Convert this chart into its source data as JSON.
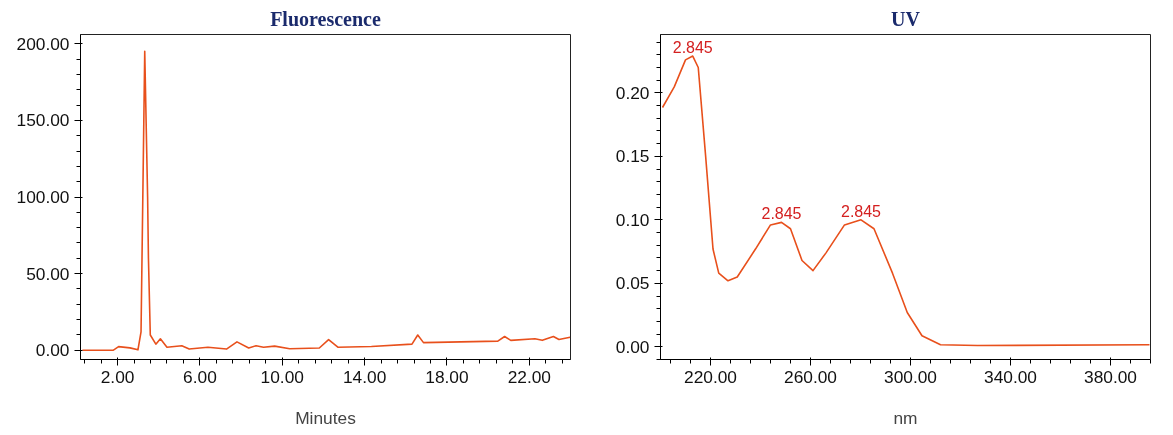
{
  "chart_data": [
    {
      "type": "line",
      "title": "Fluorescence",
      "xlabel": "Minutes",
      "x": [
        0.29,
        1.78,
        2.05,
        2.6,
        2.99,
        3.14,
        3.32,
        3.46,
        3.5,
        3.59,
        3.86,
        4.08,
        4.4,
        5.12,
        5.48,
        6.39,
        7.29,
        7.8,
        8.37,
        8.73,
        9.09,
        9.63,
        10.36,
        11.8,
        12.25,
        12.7,
        14.33,
        16.3,
        16.58,
        16.86,
        20.47,
        20.8,
        21.1,
        22.27,
        22.63,
        23.17,
        23.44,
        23.98
      ],
      "series": [
        {
          "color": "#e8501c",
          "values": [
            0,
            0,
            2.4,
            1.6,
            0.3,
            12,
            195,
            100,
            60,
            10,
            4,
            7.5,
            2,
            3,
            0.8,
            2,
            0.8,
            5.5,
            1.5,
            3,
            2,
            2.7,
            1,
            1.5,
            7,
            2,
            2.5,
            4,
            10,
            5,
            6,
            9,
            6.5,
            7.5,
            6.5,
            9,
            7,
            8.5
          ]
        }
      ],
      "xlim": [
        0.2,
        24.0
      ],
      "ylim": [
        -6,
        206
      ],
      "xticks": [
        {
          "value": 2,
          "label": "2.00"
        },
        {
          "value": 6,
          "label": "6.00"
        },
        {
          "value": 10,
          "label": "10.00"
        },
        {
          "value": 14,
          "label": "14.00"
        },
        {
          "value": 18,
          "label": "18.00"
        },
        {
          "value": 22,
          "label": "22.00"
        }
      ],
      "yticks": [
        {
          "value": 0,
          "label": "0.00"
        },
        {
          "value": 50,
          "label": "50.00"
        },
        {
          "value": 100,
          "label": "100.00"
        },
        {
          "value": 150,
          "label": "150.00"
        },
        {
          "value": 200,
          "label": "200.00"
        }
      ],
      "grid": false
    },
    {
      "type": "line",
      "title": "UV",
      "xlabel": "nm",
      "x": [
        200.8,
        205.5,
        210,
        212.9,
        215.1,
        218.1,
        221,
        223.3,
        227,
        230.7,
        238,
        244,
        248.4,
        252,
        256.6,
        261,
        266.2,
        273.6,
        280.2,
        285.4,
        292.8,
        298.7,
        304.6,
        312,
        326.8,
        395.6
      ],
      "series": [
        {
          "color": "#e8501c",
          "values": [
            0.1885,
            0.2047,
            0.226,
            0.229,
            0.22,
            0.149,
            0.077,
            0.058,
            0.052,
            0.055,
            0.077,
            0.096,
            0.098,
            0.093,
            0.068,
            0.06,
            0.074,
            0.096,
            0.1,
            0.093,
            0.058,
            0.027,
            0.0087,
            0.0016,
            0.001,
            0.0016
          ]
        }
      ],
      "xlim": [
        200,
        396
      ],
      "ylim": [
        -0.01,
        0.246
      ],
      "xticks": [
        {
          "value": 220,
          "label": "220.00"
        },
        {
          "value": 260,
          "label": "260.00"
        },
        {
          "value": 300,
          "label": "300.00"
        },
        {
          "value": 340,
          "label": "340.00"
        },
        {
          "value": 380,
          "label": "380.00"
        }
      ],
      "yticks": [
        {
          "value": 0,
          "label": "0.00"
        },
        {
          "value": 0.05,
          "label": "0.05"
        },
        {
          "value": 0.1,
          "label": "0.10"
        },
        {
          "value": 0.15,
          "label": "0.15"
        },
        {
          "value": 0.2,
          "label": "0.20"
        }
      ],
      "annotations": [
        {
          "text": "2.845",
          "x": 212.9,
          "y": 0.229
        },
        {
          "text": "2.845",
          "x": 248.4,
          "y": 0.098
        },
        {
          "text": "2.845",
          "x": 280.2,
          "y": 0.1
        }
      ],
      "grid": false
    }
  ]
}
